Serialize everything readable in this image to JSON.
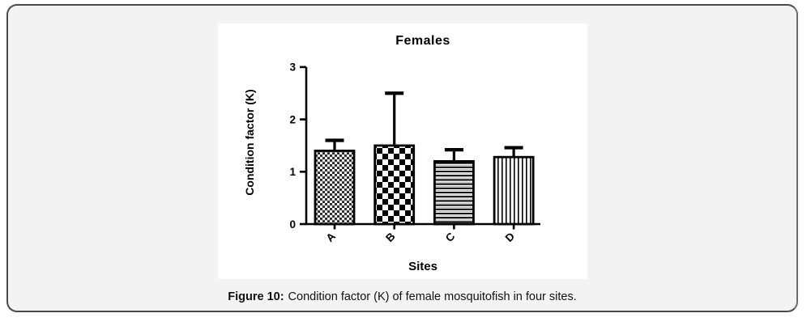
{
  "figure": {
    "caption_label": "Figure 10:",
    "caption_text": "Condition factor (K) of female mosquitofish in four sites."
  },
  "chart_data": {
    "type": "bar",
    "title": "Females",
    "xlabel": "Sites",
    "ylabel": "Condition factor (K)",
    "categories": [
      "A",
      "B",
      "C",
      "D"
    ],
    "values": [
      1.4,
      1.5,
      1.2,
      1.28
    ],
    "errors_up": [
      0.2,
      1.0,
      0.22,
      0.18
    ],
    "ylim": [
      0,
      3
    ],
    "yticks": [
      "0",
      "1",
      "2",
      "3"
    ],
    "grid": false,
    "legend_position": null,
    "bar_patterns": [
      "fine-checker",
      "checkerboard",
      "horizontal-stripes",
      "vertical-stripes"
    ],
    "bar_outline_color": "#000000",
    "axis_color": "#000000",
    "frame_background": "#f3f3f3",
    "frame_border_color": "#4a4a4a"
  }
}
